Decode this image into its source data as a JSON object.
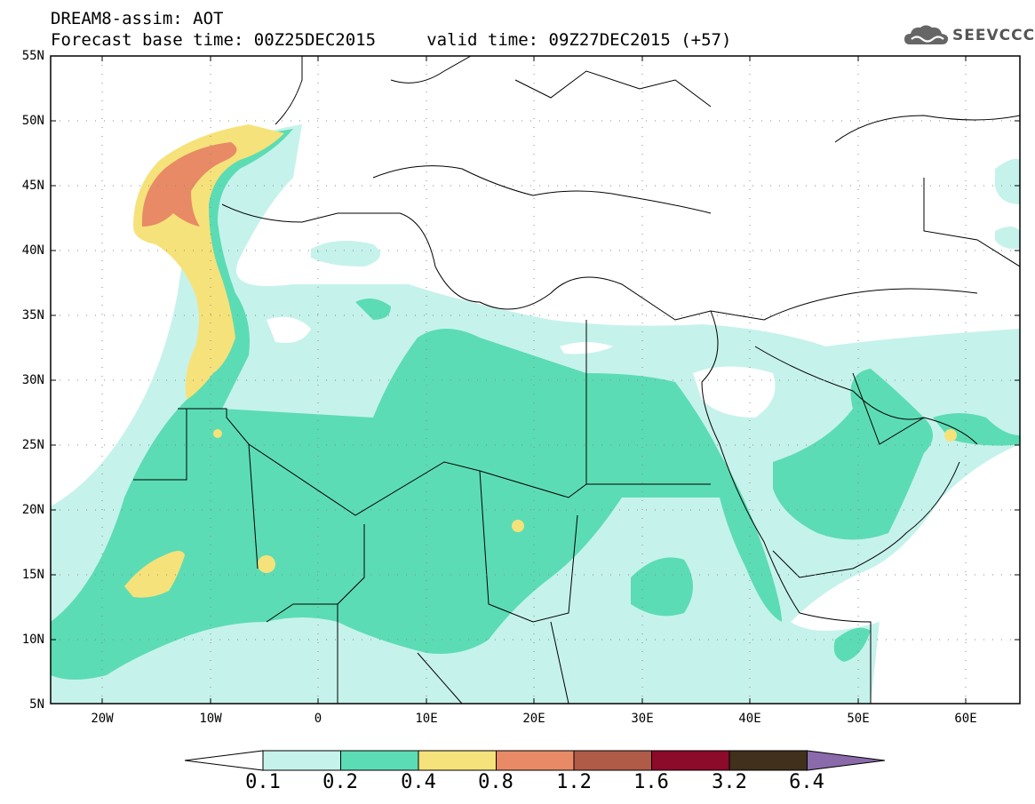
{
  "header": {
    "line1": "DREAM8-assim: AOT",
    "line2": "Forecast base time: 00Z25DEC2015     valid time: 09Z27DEC2015 (+57)"
  },
  "logo": {
    "text": "SEEVCCC",
    "icon": "cloud-logo-icon",
    "color": "#555555"
  },
  "map": {
    "lon_range": [
      -25,
      65
    ],
    "lat_range": [
      5,
      55
    ],
    "lat_labels": [
      "55N",
      "50N",
      "45N",
      "40N",
      "35N",
      "30N",
      "25N",
      "20N",
      "15N",
      "10N",
      "5N"
    ],
    "lon_labels": [
      "20W",
      "10W",
      "0",
      "10E",
      "20E",
      "30E",
      "40E",
      "50E",
      "60E"
    ],
    "variable": "AOT"
  },
  "colorbar": {
    "labels": [
      "0.1",
      "0.2",
      "0.4",
      "0.8",
      "1.2",
      "1.6",
      "3.2",
      "6.4"
    ],
    "colors": [
      "#c6f2ec",
      "#5cdcb4",
      "#f6e27a",
      "#e88a66",
      "#b05a48",
      "#8c0a2a",
      "#40301c",
      "#8a6aaa"
    ],
    "under_color": "#ffffff",
    "over_color": "#8a6aaa"
  }
}
